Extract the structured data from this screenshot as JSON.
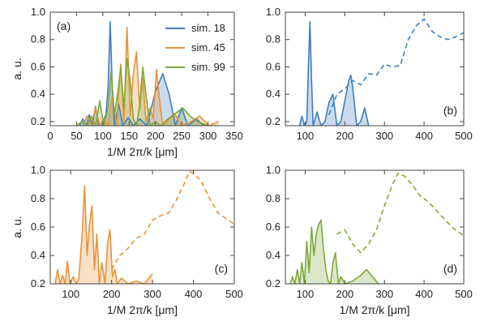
{
  "colors": {
    "sim18": "#3f7fbf",
    "sim45": "#e8933a",
    "sim99": "#7fa83a",
    "frame": "#444444"
  },
  "chart_data": [
    {
      "type": "area",
      "panel_label": "(a)",
      "xlabel": "1/M 2π/k [μm]",
      "ylabel": "a. u.",
      "xlim": [
        0,
        350
      ],
      "ylim": [
        0.17,
        1.0
      ],
      "xticks": [
        "0",
        "50",
        "100",
        "150",
        "200",
        "250",
        "300",
        "350"
      ],
      "xtick_values": [
        0,
        50,
        100,
        150,
        200,
        250,
        300,
        350
      ],
      "yticks": [
        "0.2",
        "0.4",
        "0.6",
        "0.8",
        "1.0"
      ],
      "ytick_values": [
        0.2,
        0.4,
        0.6,
        0.8,
        1.0
      ],
      "legend": {
        "placement": "top-right",
        "entries": [
          "sim. 18",
          "sim. 45",
          "sim. 99"
        ]
      },
      "series": [
        {
          "name": "sim. 18",
          "color_key": "sim18",
          "style": "solid",
          "fill": true,
          "x": [
            56,
            62,
            68,
            74,
            80,
            86,
            92,
            100,
            106,
            110,
            114,
            118,
            122,
            130,
            138,
            148,
            158,
            170,
            184,
            200,
            214,
            226,
            238,
            250,
            262,
            278,
            292
          ],
          "y": [
            0.17,
            0.22,
            0.17,
            0.25,
            0.17,
            0.31,
            0.17,
            0.2,
            0.25,
            0.45,
            0.93,
            0.45,
            0.17,
            0.33,
            0.17,
            0.23,
            0.17,
            0.22,
            0.17,
            0.42,
            0.55,
            0.4,
            0.17,
            0.3,
            0.17,
            0.22,
            0.17
          ]
        },
        {
          "name": "sim. 45",
          "color_key": "sim45",
          "style": "solid",
          "fill": true,
          "x": [
            62,
            70,
            78,
            86,
            94,
            102,
            110,
            118,
            126,
            134,
            140,
            146,
            152,
            158,
            164,
            170,
            176,
            182,
            190,
            196,
            202,
            208,
            214,
            222,
            236,
            250,
            268,
            284,
            302,
            320
          ],
          "y": [
            0.17,
            0.24,
            0.17,
            0.3,
            0.17,
            0.22,
            0.17,
            0.38,
            0.17,
            0.62,
            0.2,
            0.89,
            0.24,
            0.55,
            0.71,
            0.29,
            0.52,
            0.2,
            0.3,
            0.22,
            0.58,
            0.35,
            0.17,
            0.2,
            0.26,
            0.17,
            0.2,
            0.24,
            0.17,
            0.2
          ]
        },
        {
          "name": "sim. 99",
          "color_key": "sim99",
          "style": "solid",
          "fill": true,
          "x": [
            50,
            60,
            70,
            78,
            86,
            94,
            102,
            110,
            116,
            122,
            128,
            134,
            140,
            146,
            152,
            158,
            164,
            170,
            176,
            182,
            190,
            200,
            210,
            224,
            238,
            252,
            266,
            280,
            300
          ],
          "y": [
            0.17,
            0.2,
            0.17,
            0.24,
            0.17,
            0.35,
            0.17,
            0.3,
            0.57,
            0.25,
            0.4,
            0.6,
            0.3,
            0.66,
            0.5,
            0.22,
            0.17,
            0.32,
            0.6,
            0.4,
            0.17,
            0.2,
            0.17,
            0.22,
            0.26,
            0.3,
            0.24,
            0.2,
            0.17
          ]
        }
      ]
    },
    {
      "type": "area",
      "panel_label": "(b)",
      "xlabel": "",
      "ylabel": "",
      "xlim": [
        50,
        500
      ],
      "ylim": [
        0.17,
        1.0
      ],
      "xticks": [
        "100",
        "200",
        "300",
        "400",
        "500"
      ],
      "xtick_values": [
        100,
        200,
        300,
        400,
        500
      ],
      "yticks": [
        "0.2",
        "0.4",
        "0.6",
        "0.8",
        "1.0"
      ],
      "ytick_values": [
        0.2,
        0.4,
        0.6,
        0.8,
        1.0
      ],
      "series": [
        {
          "name": "sim. 18",
          "color_key": "sim18",
          "style": "solid",
          "fill": true,
          "x": [
            86,
            92,
            98,
            104,
            108,
            112,
            116,
            120,
            130,
            140,
            150,
            160,
            170,
            180,
            190,
            200,
            210,
            215,
            220,
            230,
            240,
            250,
            260
          ],
          "y": [
            0.17,
            0.24,
            0.17,
            0.2,
            0.6,
            0.93,
            0.5,
            0.17,
            0.27,
            0.17,
            0.2,
            0.34,
            0.4,
            0.17,
            0.2,
            0.35,
            0.5,
            0.54,
            0.45,
            0.17,
            0.2,
            0.3,
            0.17
          ]
        },
        {
          "name": "sim. 18 (dashed)",
          "color_key": "sim18",
          "style": "dashed",
          "fill": false,
          "x": [
            160,
            180,
            200,
            220,
            240,
            260,
            280,
            300,
            320,
            340,
            360,
            380,
            400,
            420,
            440,
            460,
            480,
            500
          ],
          "y": [
            0.25,
            0.4,
            0.44,
            0.5,
            0.47,
            0.55,
            0.54,
            0.62,
            0.6,
            0.61,
            0.8,
            0.9,
            0.95,
            0.86,
            0.82,
            0.8,
            0.82,
            0.85
          ]
        }
      ]
    },
    {
      "type": "area",
      "panel_label": "(c)",
      "xlabel": "1/M 2π/k [μm]",
      "ylabel": "a. u.",
      "xlim": [
        50,
        500
      ],
      "ylim": [
        0.2,
        1.0
      ],
      "xticks": [
        "100",
        "200",
        "300",
        "400",
        "500"
      ],
      "xtick_values": [
        100,
        200,
        300,
        400,
        500
      ],
      "yticks": [
        "0.2",
        "0.4",
        "0.6",
        "0.8",
        "1.0"
      ],
      "ytick_values": [
        0.2,
        0.4,
        0.6,
        0.8,
        1.0
      ],
      "series": [
        {
          "name": "sim. 45",
          "color_key": "sim45",
          "style": "solid",
          "fill": true,
          "x": [
            62,
            68,
            74,
            80,
            86,
            92,
            98,
            106,
            114,
            120,
            128,
            134,
            140,
            146,
            152,
            158,
            164,
            170,
            176,
            184,
            190,
            196,
            202,
            208,
            214,
            224,
            240,
            260,
            280,
            300
          ],
          "y": [
            0.2,
            0.3,
            0.2,
            0.26,
            0.2,
            0.36,
            0.2,
            0.25,
            0.2,
            0.24,
            0.55,
            0.89,
            0.4,
            0.62,
            0.75,
            0.3,
            0.55,
            0.2,
            0.35,
            0.2,
            0.48,
            0.58,
            0.25,
            0.3,
            0.2,
            0.24,
            0.2,
            0.22,
            0.2,
            0.27
          ]
        },
        {
          "name": "sim. 45 (dashed)",
          "color_key": "sim45",
          "style": "dashed",
          "fill": false,
          "x": [
            200,
            220,
            240,
            260,
            280,
            300,
            320,
            340,
            360,
            380,
            390,
            400,
            420,
            440,
            460,
            480,
            500
          ],
          "y": [
            0.3,
            0.4,
            0.45,
            0.52,
            0.55,
            0.65,
            0.68,
            0.7,
            0.8,
            0.92,
            0.99,
            0.98,
            0.92,
            0.8,
            0.7,
            0.66,
            0.62
          ]
        }
      ]
    },
    {
      "type": "area",
      "panel_label": "(d)",
      "xlabel": "1/M 2π/k [μm]",
      "ylabel": "",
      "xlim": [
        50,
        500
      ],
      "ylim": [
        0.2,
        1.0
      ],
      "xticks": [
        "100",
        "200",
        "300",
        "400",
        "500"
      ],
      "xtick_values": [
        100,
        200,
        300,
        400,
        500
      ],
      "yticks": [
        "0.2",
        "0.4",
        "0.6",
        "0.8",
        "1.0"
      ],
      "ytick_values": [
        0.2,
        0.4,
        0.6,
        0.8,
        1.0
      ],
      "series": [
        {
          "name": "sim. 99",
          "color_key": "sim99",
          "style": "solid",
          "fill": true,
          "x": [
            62,
            68,
            74,
            80,
            86,
            92,
            98,
            104,
            110,
            116,
            122,
            128,
            134,
            140,
            146,
            152,
            158,
            164,
            170,
            176,
            184,
            190,
            200,
            220,
            240,
            255,
            270,
            285
          ],
          "y": [
            0.2,
            0.25,
            0.2,
            0.3,
            0.2,
            0.35,
            0.2,
            0.5,
            0.28,
            0.6,
            0.4,
            0.55,
            0.62,
            0.65,
            0.45,
            0.3,
            0.22,
            0.2,
            0.35,
            0.42,
            0.2,
            0.25,
            0.2,
            0.22,
            0.26,
            0.3,
            0.25,
            0.2
          ]
        },
        {
          "name": "sim. 99 (dashed)",
          "color_key": "sim99",
          "style": "dashed",
          "fill": false,
          "x": [
            180,
            200,
            220,
            240,
            260,
            280,
            300,
            320,
            335,
            350,
            370,
            390,
            410,
            430,
            450,
            470,
            500
          ],
          "y": [
            0.55,
            0.58,
            0.48,
            0.42,
            0.48,
            0.58,
            0.75,
            0.9,
            0.98,
            0.96,
            0.9,
            0.82,
            0.78,
            0.72,
            0.66,
            0.6,
            0.54
          ]
        }
      ]
    }
  ]
}
